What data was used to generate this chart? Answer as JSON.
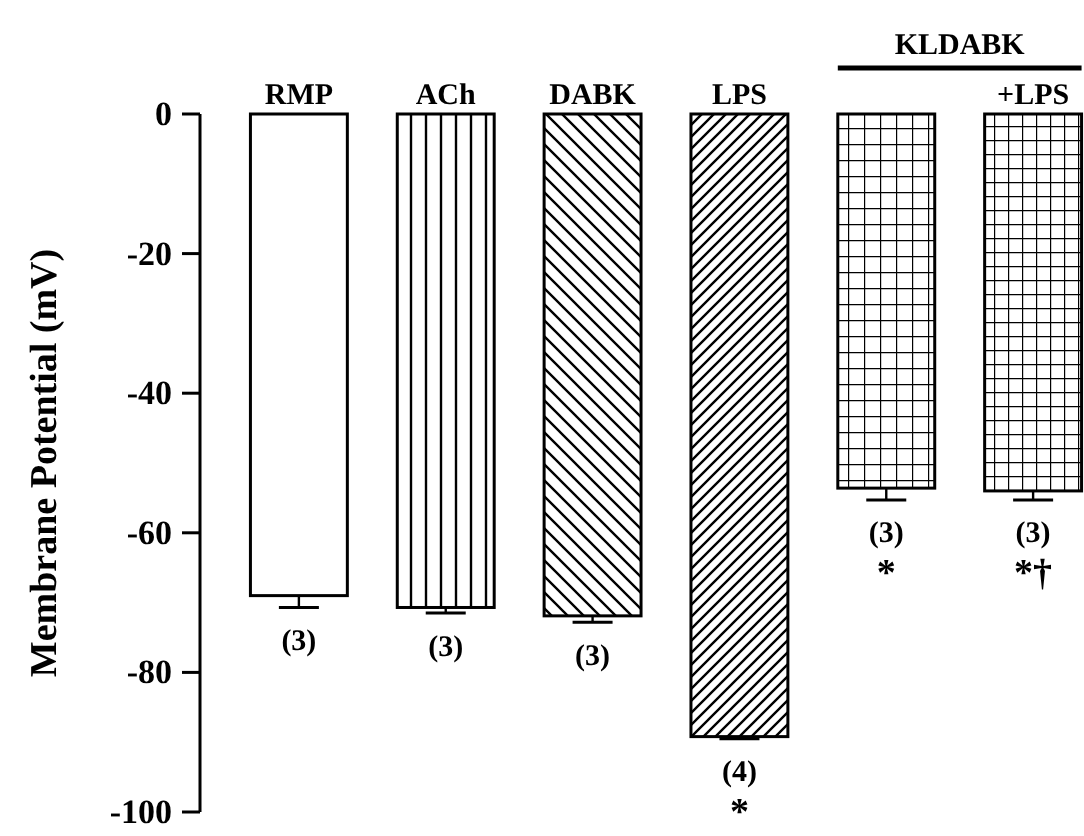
{
  "chart_data": {
    "type": "bar",
    "ylabel": "Membrane Potential (mV)",
    "categories": [
      "RMP",
      "ACh",
      "DABK",
      "LPS",
      null,
      "+LPS"
    ],
    "values": [
      -69,
      -70.7,
      -71.9,
      -89.2,
      -53.6,
      -54
    ],
    "colors": [
      "#ffffff",
      "#000000",
      "#000000",
      "#000000",
      "#000000",
      "#000000"
    ],
    "errors": [
      [
        -70.7,
        -69
      ],
      [
        -71.5,
        -70.7
      ],
      [
        -72.8,
        -71.9
      ],
      [
        -89.5,
        -89.2
      ],
      [
        -55.3,
        -53.6
      ],
      [
        -55.3,
        -54
      ]
    ],
    "ylim": [
      -100,
      0
    ],
    "yticks": [
      0,
      -20,
      -40,
      -60,
      -80,
      -100
    ],
    "annotations": [
      "KLDABK",
      "(3)",
      "(3)",
      "(3)",
      "(4)\n*",
      "(3)\n*",
      "(3)\n*†"
    ]
  }
}
